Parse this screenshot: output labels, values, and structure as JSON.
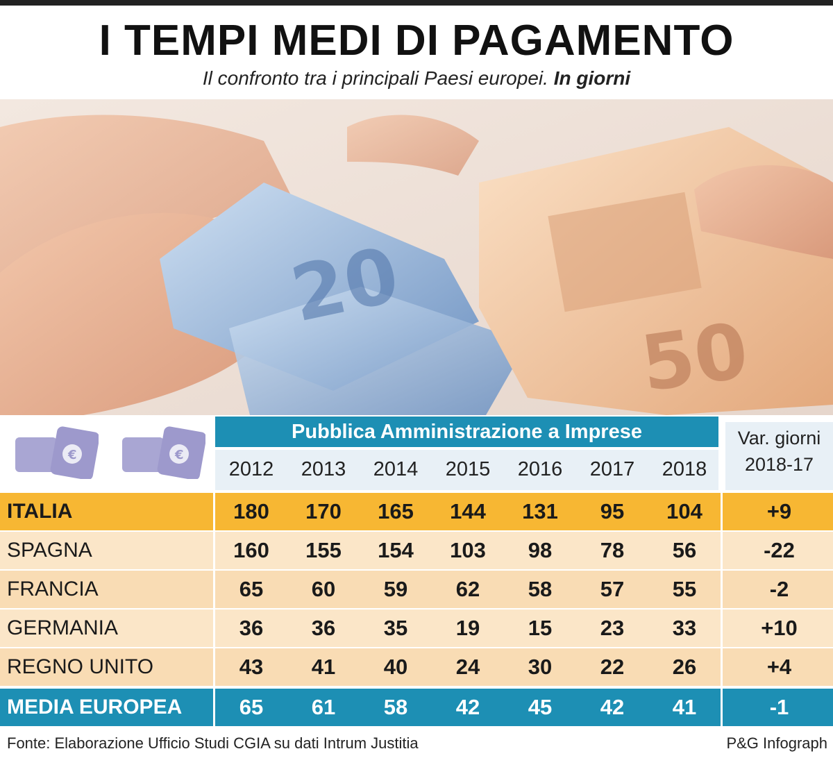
{
  "header": {
    "title": "I TEMPI MEDI DI PAGAMENTO",
    "subtitle": "Il confronto tra i principali Paesi europei.",
    "subtitle_bold": "In giorni"
  },
  "chart_data": {
    "type": "table",
    "group_header": "Pubblica Amministrazione a Imprese",
    "var_header_line1": "Var. giorni",
    "var_header_line2": "2018-17",
    "years": [
      "2012",
      "2013",
      "2014",
      "2015",
      "2016",
      "2017",
      "2018"
    ],
    "rows": [
      {
        "country": "ITALIA",
        "values": [
          "180",
          "170",
          "165",
          "144",
          "131",
          "95",
          "104"
        ],
        "var": "+9"
      },
      {
        "country": "SPAGNA",
        "values": [
          "160",
          "155",
          "154",
          "103",
          "98",
          "78",
          "56"
        ],
        "var": "-22"
      },
      {
        "country": "FRANCIA",
        "values": [
          "65",
          "60",
          "59",
          "62",
          "58",
          "57",
          "55"
        ],
        "var": "-2"
      },
      {
        "country": "GERMANIA",
        "values": [
          "36",
          "36",
          "35",
          "19",
          "15",
          "23",
          "33"
        ],
        "var": "+10"
      },
      {
        "country": "REGNO UNITO",
        "values": [
          "43",
          "41",
          "40",
          "24",
          "30",
          "22",
          "26"
        ],
        "var": "+4"
      },
      {
        "country": "MEDIA EUROPEA",
        "values": [
          "65",
          "61",
          "58",
          "42",
          "45",
          "42",
          "41"
        ],
        "var": "-1"
      }
    ]
  },
  "footer": {
    "source": "Fonte: Elaborazione Ufficio Studi CGIA su dati Intrum Justitia",
    "credit": "P&G Infograph"
  },
  "colors": {
    "accent_blue": "#1d8fb4",
    "italia_row": "#f7b733",
    "light_row": "#fbe6c8",
    "mid_row": "#f9dcb4",
    "header_pale": "#e8f0f6"
  },
  "icons": [
    "payment-card-icon",
    "payment-card-icon"
  ]
}
